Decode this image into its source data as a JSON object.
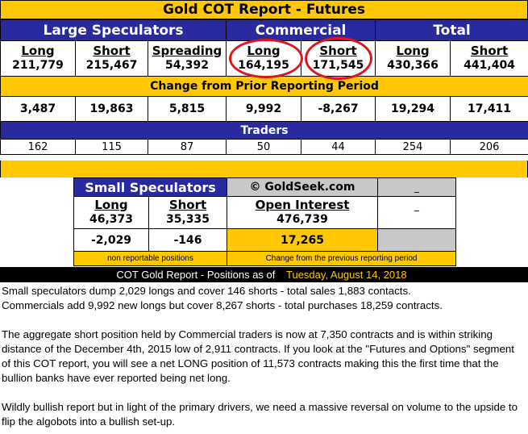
{
  "title": "Gold COT Report - Futures",
  "groups": {
    "large_speculators": "Large Speculators",
    "commercial": "Commercial",
    "total": "Total"
  },
  "columns": [
    "Long",
    "Short",
    "Spreading",
    "Long",
    "Short",
    "Long",
    "Short"
  ],
  "positions": [
    "211,779",
    "215,467",
    "54,392",
    "164,195",
    "171,545",
    "430,366",
    "441,404"
  ],
  "change_title": "Change from Prior Reporting Period",
  "changes": [
    "3,487",
    "19,863",
    "5,815",
    "9,992",
    "-8,267",
    "19,294",
    "17,411"
  ],
  "traders_title": "Traders",
  "traders": [
    "162",
    "115",
    "87",
    "50",
    "44",
    "254",
    "206"
  ],
  "small_speculators": {
    "title": "Small Speculators",
    "copyright": "© GoldSeek.com",
    "long_label": "Long",
    "long_value": "46,373",
    "short_label": "Short",
    "short_value": "35,335",
    "oi_label": "Open Interest",
    "oi_value": "476,739",
    "long_change": "-2,029",
    "short_change": "-146",
    "oi_change": "17,265",
    "note_left": "non reportable positions",
    "note_right": "Change from the previous reporting period",
    "dash1": "_",
    "dash2": "_"
  },
  "footer_bar": {
    "prefix": "COT Gold Report - Positions as of",
    "date": "Tuesday, August 14, 2018"
  },
  "paragraphs": [
    "Small speculators dump 2,029 longs and cover 146 shorts - total sales 1,883 contacts.",
    "Commercials add 9,992 new longs but cover 8,267 shorts - total purchases 18,259 contracts.",
    "The aggregate short position held by Commercial traders is now at 7,350 contracts and is within striking distance of the December 4th, 2015 low of 2,911 contracts. If you look at the \"Futures and Options\" segment of this COT report, you will see a net LONG position of 11,573 contracts making this the first time that the bullion banks have ever reported being net long.",
    "Wildly bullish report but in light of the primary drivers, we need a massive reversal on volume to the upside to flip the algobots into a bullish set-up."
  ],
  "colors": {
    "gold": "#ffc800",
    "navy": "#2a2aa0",
    "circle": "#e0141e",
    "grey": "#c8c8c8"
  }
}
